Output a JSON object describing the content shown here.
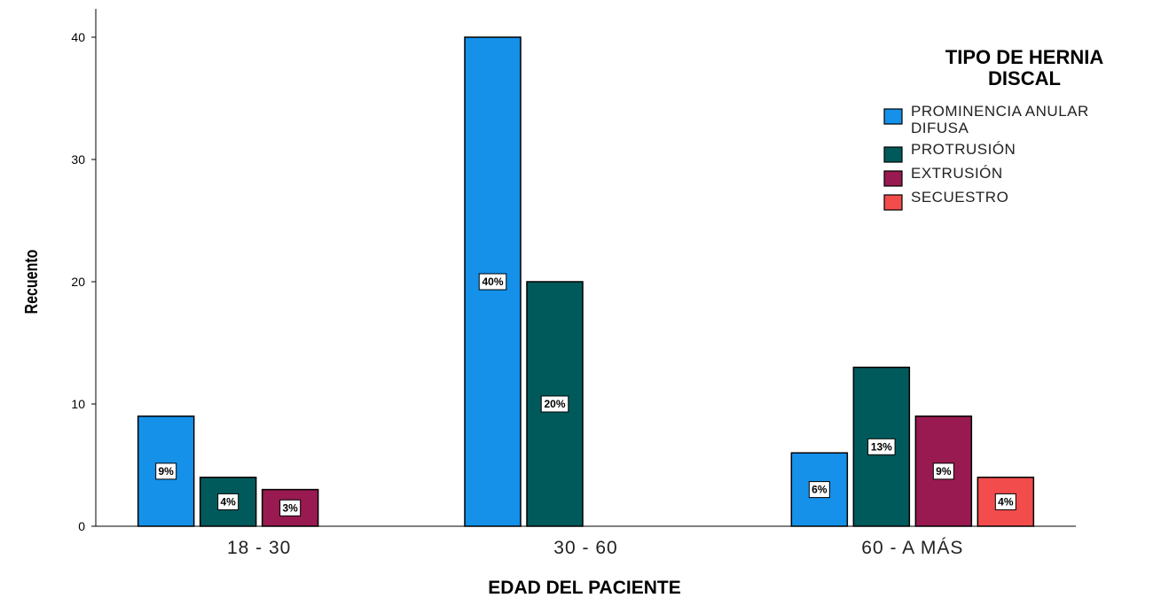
{
  "chart_data": {
    "type": "bar",
    "title": "",
    "xlabel": "EDAD DEL PACIENTE",
    "ylabel": "Recuento",
    "ylim": [
      0,
      42
    ],
    "yticks": [
      0,
      10,
      20,
      30,
      40
    ],
    "grid": false,
    "legend_placement": "top-right",
    "legend_title": [
      "TIPO DE HERNIA",
      "DISCAL"
    ],
    "categories": [
      "18 - 30",
      "30 - 60",
      "60 - A MÁS"
    ],
    "series": [
      {
        "name": [
          "PROMINENCIA ANULAR",
          "DIFUSA"
        ],
        "color": "#1591ea",
        "values": [
          9,
          40,
          6
        ],
        "labels": [
          "9%",
          "40%",
          "6%"
        ]
      },
      {
        "name": [
          "PROTRUSIÓN"
        ],
        "color": "#005a5b",
        "values": [
          4,
          20,
          13
        ],
        "labels": [
          "4%",
          "20%",
          "13%"
        ]
      },
      {
        "name": [
          "EXTRUSIÓN"
        ],
        "color": "#981a50",
        "values": [
          3,
          null,
          9
        ],
        "labels": [
          "3%",
          null,
          "9%"
        ]
      },
      {
        "name": [
          "SECUESTRO"
        ],
        "color": "#f24c4c",
        "values": [
          null,
          null,
          4
        ],
        "labels": [
          null,
          null,
          "4%"
        ]
      }
    ]
  }
}
